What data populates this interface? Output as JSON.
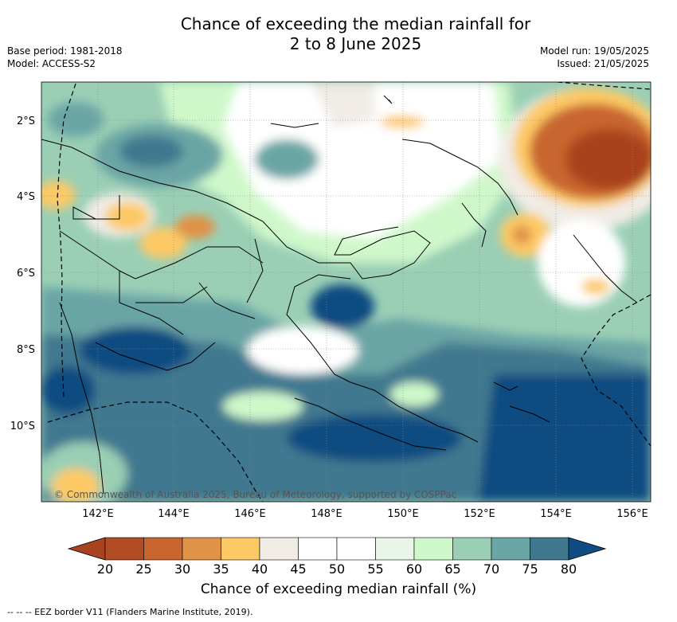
{
  "title_line1": "Chance of exceeding the median rainfall for",
  "title_line2": "2 to 8 June 2025",
  "base_period": "Base period: 1981-2018",
  "model": "Model: ACCESS-S2",
  "model_run": "Model run: 19/05/2025",
  "issued": "Issued: 21/05/2025",
  "credit": "© Commonwealth of Australia 2025, Bureau of Meteorology, supported by COSPPac",
  "lon_ticks": [
    "142°E",
    "144°E",
    "146°E",
    "148°E",
    "150°E",
    "152°E",
    "154°E",
    "156°E"
  ],
  "lat_ticks": [
    "2°S",
    "4°S",
    "6°S",
    "8°S",
    "10°S"
  ],
  "colorbar": {
    "label": "Chance of exceeding median rainfall (%)",
    "ticks": [
      "20",
      "25",
      "30",
      "35",
      "40",
      "45",
      "50",
      "55",
      "60",
      "65",
      "70",
      "75",
      "80"
    ],
    "colors": [
      "#a9431f",
      "#b24c22",
      "#c9652f",
      "#e09246",
      "#fdc965",
      "#f0ebe5",
      "#ffffff",
      "#ffffff",
      "#eaf5ea",
      "#cff8ca",
      "#9acfb5",
      "#6ba5a5",
      "#41788f",
      "#0f4c81"
    ]
  },
  "footnote": "-- -- -- EEZ border V11 (Flanders Marine Institute, 2019)."
}
